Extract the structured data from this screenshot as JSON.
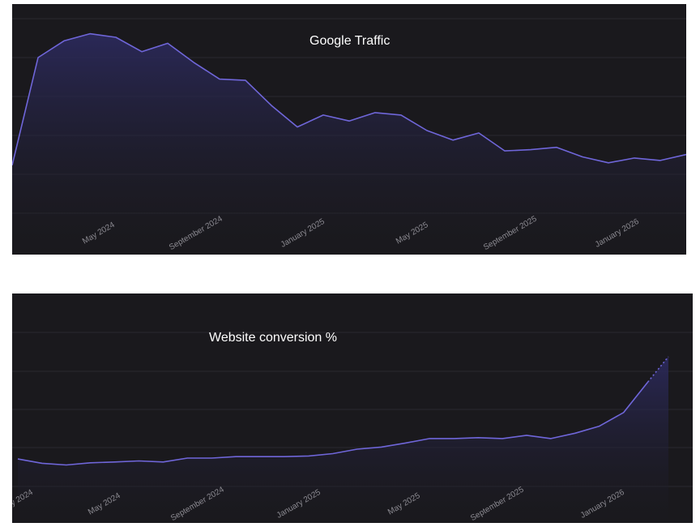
{
  "colors": {
    "background": "#1a191d",
    "line": "#6f66d9",
    "area_top": "#2c2a5e",
    "gridline": "#2a292e",
    "tick_text": "#8b8a91",
    "title_text": "#ffffff"
  },
  "chart_data": [
    {
      "id": "traffic",
      "type": "area",
      "title": "Google Traffic",
      "xlabel": "",
      "ylabel": "",
      "grid": true,
      "y_axis_labels_visible": false,
      "x_range": [
        "2024-01-01",
        "2026-03-01"
      ],
      "ylim": [
        0,
        100
      ],
      "tick_labels": [
        {
          "date": "2024-05-01",
          "label": "May 2024"
        },
        {
          "date": "2024-09-01",
          "label": "September 2024"
        },
        {
          "date": "2025-01-01",
          "label": "January 2025"
        },
        {
          "date": "2025-05-01",
          "label": "May 2025"
        },
        {
          "date": "2025-09-01",
          "label": "September 2025"
        },
        {
          "date": "2026-01-01",
          "label": "January 2026"
        }
      ],
      "series": [
        {
          "values": [
            {
              "x": "2024-01-01",
              "y": 36
            },
            {
              "x": "2024-01-23",
              "y": 81
            },
            {
              "x": "2024-02-15",
              "y": 88
            },
            {
              "x": "2024-03-10",
              "y": 91
            },
            {
              "x": "2024-04-02",
              "y": 89.5
            },
            {
              "x": "2024-04-25",
              "y": 83.5
            },
            {
              "x": "2024-05-18",
              "y": 87
            },
            {
              "x": "2024-06-10",
              "y": 79
            },
            {
              "x": "2024-07-03",
              "y": 72
            },
            {
              "x": "2024-07-27",
              "y": 71.5
            },
            {
              "x": "2024-08-19",
              "y": 61
            },
            {
              "x": "2024-09-11",
              "y": 52
            },
            {
              "x": "2024-10-04",
              "y": 57
            },
            {
              "x": "2024-10-27",
              "y": 54.5
            },
            {
              "x": "2024-11-19",
              "y": 58
            },
            {
              "x": "2024-12-12",
              "y": 57
            },
            {
              "x": "2025-01-04",
              "y": 50.5
            },
            {
              "x": "2025-01-27",
              "y": 46.5
            },
            {
              "x": "2025-02-20",
              "y": 49.5
            },
            {
              "x": "2025-03-15",
              "y": 42
            },
            {
              "x": "2025-04-07",
              "y": 42.5
            },
            {
              "x": "2025-04-30",
              "y": 43.5
            },
            {
              "x": "2025-05-23",
              "y": 39.5
            },
            {
              "x": "2025-06-15",
              "y": 37
            },
            {
              "x": "2025-07-08",
              "y": 39
            },
            {
              "x": "2025-07-31",
              "y": 38
            },
            {
              "x": "2025-08-23",
              "y": 40.5
            }
          ]
        }
      ]
    },
    {
      "id": "conversion",
      "type": "area",
      "title": "Website conversion %",
      "xlabel": "",
      "ylabel": "",
      "grid": true,
      "y_axis_labels_visible": false,
      "x_range": [
        "2024-01-01",
        "2026-03-01"
      ],
      "ylim": [
        0,
        100
      ],
      "tick_labels": [
        {
          "date": "2024-01-15",
          "label": "January 2024"
        },
        {
          "date": "2024-05-01",
          "label": "May 2024"
        },
        {
          "date": "2024-09-01",
          "label": "September 2024"
        },
        {
          "date": "2025-01-01",
          "label": "January 2025"
        },
        {
          "date": "2025-05-01",
          "label": "May 2025"
        },
        {
          "date": "2025-09-01",
          "label": "September 2025"
        },
        {
          "date": "2026-01-01",
          "label": "January 2026"
        }
      ],
      "series": [
        {
          "values": [
            {
              "x": "2024-01-01",
              "y": 30
            },
            {
              "x": "2024-01-24",
              "y": 28
            },
            {
              "x": "2024-02-16",
              "y": 27.2
            },
            {
              "x": "2024-03-11",
              "y": 28.2
            },
            {
              "x": "2024-04-03",
              "y": 28.6
            },
            {
              "x": "2024-04-26",
              "y": 29.1
            },
            {
              "x": "2024-05-19",
              "y": 28.6
            },
            {
              "x": "2024-06-11",
              "y": 30.4
            },
            {
              "x": "2024-07-04",
              "y": 30.4
            },
            {
              "x": "2024-07-27",
              "y": 31.1
            },
            {
              "x": "2024-08-19",
              "y": 31.1
            },
            {
              "x": "2024-09-11",
              "y": 31.1
            },
            {
              "x": "2024-10-04",
              "y": 31.4
            },
            {
              "x": "2024-10-27",
              "y": 32.5
            },
            {
              "x": "2024-11-19",
              "y": 34.6
            },
            {
              "x": "2024-12-12",
              "y": 35.6
            },
            {
              "x": "2025-01-04",
              "y": 37.5
            },
            {
              "x": "2025-01-27",
              "y": 39.6
            },
            {
              "x": "2025-02-19",
              "y": 39.6
            },
            {
              "x": "2025-03-14",
              "y": 40.0
            },
            {
              "x": "2025-04-06",
              "y": 39.6
            },
            {
              "x": "2025-04-29",
              "y": 41.1
            },
            {
              "x": "2025-05-22",
              "y": 39.6
            },
            {
              "x": "2025-06-14",
              "y": 42.1
            },
            {
              "x": "2025-07-07",
              "y": 45.4
            },
            {
              "x": "2025-07-30",
              "y": 51.8
            },
            {
              "x": "2025-08-22",
              "y": 66.1
            }
          ],
          "projected": [
            {
              "x": "2025-08-22",
              "y": 66.1
            },
            {
              "x": "2025-09-10",
              "y": 78
            }
          ]
        }
      ]
    }
  ]
}
